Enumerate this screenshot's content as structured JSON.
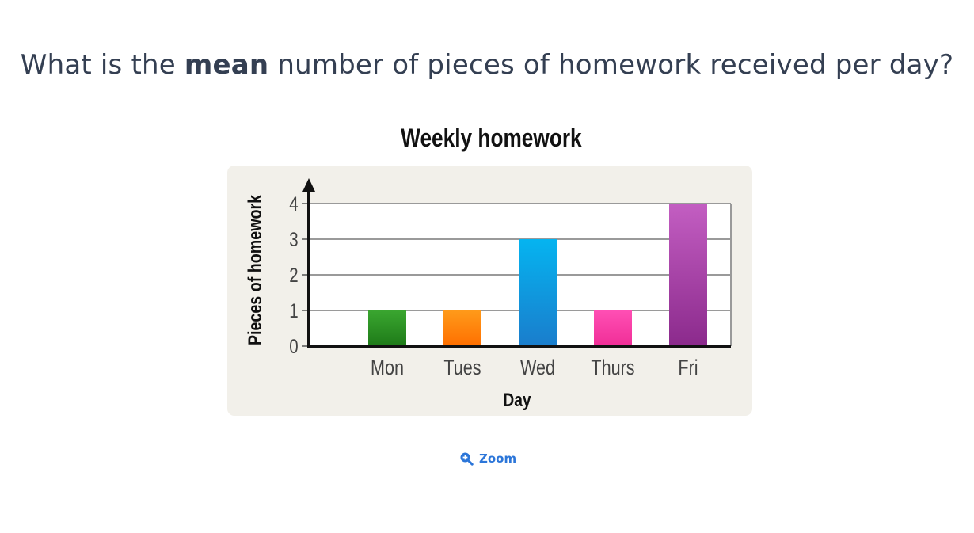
{
  "question": {
    "before": "What is the ",
    "emphasis": "mean",
    "after": " number of pieces of homework received per day?"
  },
  "chart_data": {
    "type": "bar",
    "title": "Weekly homework",
    "xlabel": "Day",
    "ylabel": "Pieces of homework",
    "categories": [
      "Mon",
      "Tues",
      "Wed",
      "Thurs",
      "Fri"
    ],
    "values": [
      1,
      1,
      3,
      1,
      4
    ],
    "ylim": [
      0,
      4
    ],
    "yticks": [
      "0",
      "1",
      "2",
      "3",
      "4"
    ],
    "grid": true,
    "colors": [
      [
        "#3aa630",
        "#1e7a18"
      ],
      [
        "#ff9a1a",
        "#ff6f00"
      ],
      [
        "#05b4f0",
        "#1a7dcc"
      ],
      [
        "#ff4fb4",
        "#f02e97"
      ],
      [
        "#c35ec2",
        "#8b2a8c"
      ]
    ],
    "background": "#f2f0ea"
  },
  "zoom": {
    "label": "Zoom",
    "icon": "zoom-in-icon",
    "color": "#2c76d9"
  }
}
